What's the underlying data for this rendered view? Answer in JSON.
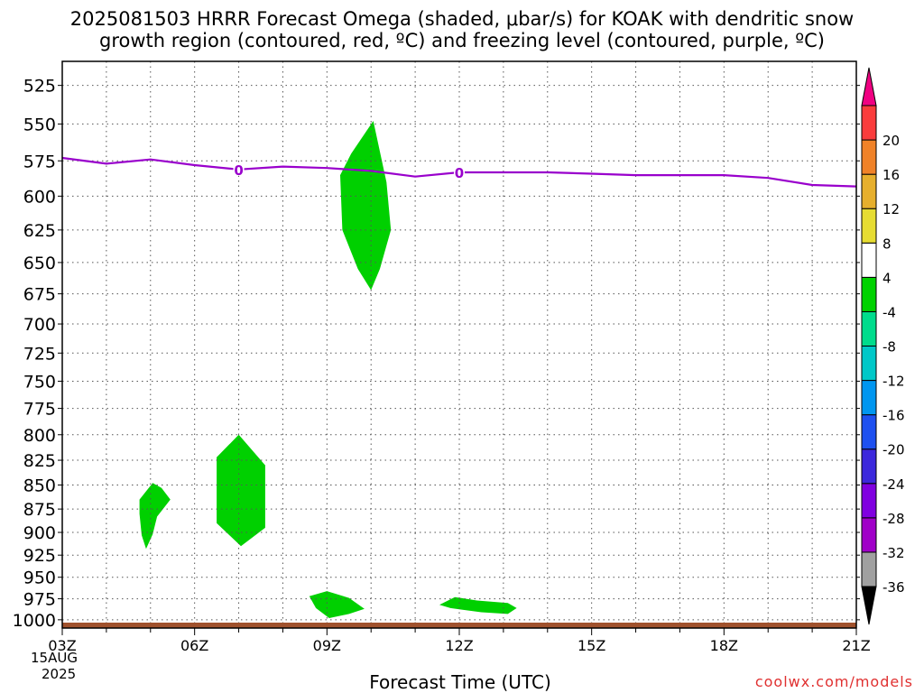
{
  "title_line1": "2025081503 HRRR Forecast Omega (shaded, μbar/s) for KOAK with dendritic snow",
  "title_line2": "growth region (contoured, red, ºC) and freezing level (contoured, purple, ºC)",
  "x_axis_label": "Forecast Time (UTC)",
  "date_day": "15AUG",
  "date_year": "2025",
  "watermark": "coolwx.com/models",
  "chart_data": {
    "type": "heatmap",
    "title": "2025081503 HRRR Forecast Omega (shaded, μbar/s) for KOAK with dendritic snow growth region (contoured, red, ºC) and freezing level (contoured, purple, ºC)",
    "xlabel": "Forecast Time (UTC)",
    "ylabel": "",
    "x_unit": "forecast hour from 2025-08-15 03Z",
    "xlim": [
      0,
      18
    ],
    "ylim": [
      1010,
      510
    ],
    "y_log_scale": true,
    "x_ticks": [
      {
        "hour": 0,
        "label": "03Z"
      },
      {
        "hour": 3,
        "label": "06Z"
      },
      {
        "hour": 6,
        "label": "09Z"
      },
      {
        "hour": 9,
        "label": "12Z"
      },
      {
        "hour": 12,
        "label": "15Z"
      },
      {
        "hour": 15,
        "label": "18Z"
      },
      {
        "hour": 18,
        "label": "21Z"
      }
    ],
    "y_ticks": [
      525,
      550,
      575,
      600,
      625,
      650,
      675,
      700,
      725,
      750,
      775,
      800,
      825,
      850,
      875,
      900,
      925,
      950,
      975,
      1000
    ],
    "grid": true,
    "freezing_level": {
      "color": "#9900cc",
      "label": "0",
      "label_positions": [
        4,
        9
      ],
      "points": [
        [
          0,
          573
        ],
        [
          1,
          577
        ],
        [
          2,
          574
        ],
        [
          3,
          578
        ],
        [
          4,
          581
        ],
        [
          5,
          579
        ],
        [
          6,
          580
        ],
        [
          7,
          582
        ],
        [
          8,
          586
        ],
        [
          9,
          583
        ],
        [
          10,
          583
        ],
        [
          11,
          583
        ],
        [
          12,
          584
        ],
        [
          13,
          585
        ],
        [
          14,
          585
        ],
        [
          15,
          585
        ],
        [
          16,
          587
        ],
        [
          17,
          592
        ],
        [
          18,
          593
        ]
      ]
    },
    "omega_regions": [
      {
        "name": "green",
        "value_range": [
          -8,
          -4
        ],
        "color": "#00d000",
        "points": [
          [
            6.35,
            625
          ],
          [
            6.3,
            585
          ],
          [
            6.55,
            570
          ],
          [
            7.05,
            548
          ],
          [
            7.35,
            590
          ],
          [
            7.45,
            625
          ],
          [
            7.2,
            655
          ],
          [
            7,
            672
          ],
          [
            6.7,
            655
          ]
        ]
      },
      {
        "name": "green",
        "value_range": [
          -8,
          -4
        ],
        "color": "#00d000",
        "points": [
          [
            1.75,
            865
          ],
          [
            2.05,
            848
          ],
          [
            2.25,
            853
          ],
          [
            2.45,
            865
          ],
          [
            2.15,
            883
          ],
          [
            2.05,
            902
          ],
          [
            1.9,
            918
          ],
          [
            1.8,
            903
          ],
          [
            1.75,
            880
          ]
        ]
      },
      {
        "name": "green",
        "value_range": [
          -8,
          -4
        ],
        "color": "#00d000",
        "points": [
          [
            3.5,
            822
          ],
          [
            4,
            800
          ],
          [
            4.6,
            830
          ],
          [
            4.6,
            895
          ],
          [
            4.05,
            915
          ],
          [
            3.5,
            890
          ],
          [
            3.5,
            862
          ]
        ]
      },
      {
        "name": "green",
        "value_range": [
          -8,
          -4
        ],
        "color": "#00d000",
        "points": [
          [
            5.6,
            972
          ],
          [
            6,
            966
          ],
          [
            6.5,
            974
          ],
          [
            6.85,
            987
          ],
          [
            6.5,
            993
          ],
          [
            6.05,
            998
          ],
          [
            5.75,
            986
          ]
        ]
      },
      {
        "name": "green",
        "value_range": [
          -8,
          -4
        ],
        "color": "#00d000",
        "points": [
          [
            8.55,
            982
          ],
          [
            8.9,
            973
          ],
          [
            9.4,
            977
          ],
          [
            10.1,
            980
          ],
          [
            10.3,
            986
          ],
          [
            10.1,
            993
          ],
          [
            9.5,
            991
          ],
          [
            8.8,
            986
          ]
        ]
      }
    ],
    "surface_bar": {
      "color": "#a0522d",
      "pressure": 1010
    },
    "colorbar": {
      "unit": "μbar/s",
      "levels": [
        -36,
        -32,
        -28,
        -24,
        -20,
        -16,
        -12,
        -8,
        -4,
        4,
        8,
        12,
        16,
        20
      ],
      "labels": [
        "-36",
        "-32",
        "-28",
        "-24",
        "-20",
        "-16",
        "-12",
        "-8",
        "-4",
        "4",
        "8",
        "12",
        "16",
        "20"
      ],
      "colors": [
        "#a0a0a0",
        "#a000c8",
        "#8000e0",
        "#3c28dc",
        "#1e50f0",
        "#0096f0",
        "#00c8c8",
        "#00dc8c",
        "#00d200",
        "#ffffff",
        "#e6dc32",
        "#e6af2d",
        "#f08228",
        "#fa3c3c"
      ],
      "below_color": "#000000",
      "above_color": "#f00082"
    }
  }
}
